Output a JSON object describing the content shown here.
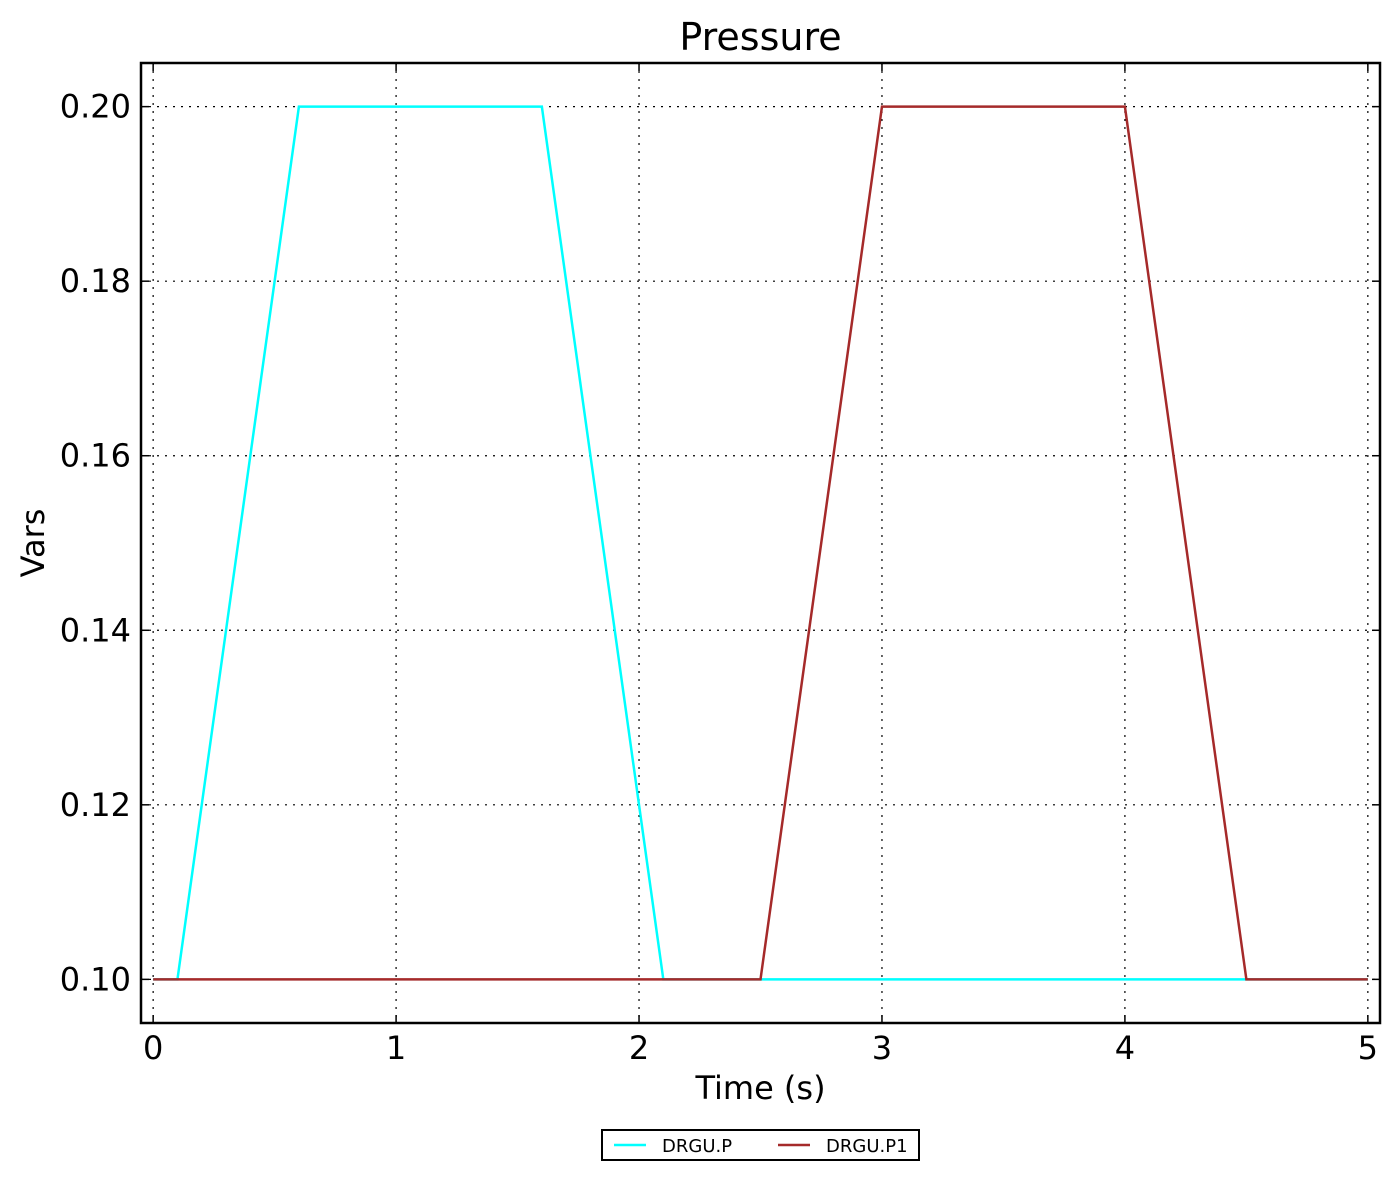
{
  "chart_data": {
    "type": "line",
    "title": "Pressure",
    "xlabel": "Time (s)",
    "ylabel": "Vars",
    "xlim": [
      -0.05,
      5.05
    ],
    "ylim": [
      0.095,
      0.205
    ],
    "xticks": [
      0,
      1,
      2,
      3,
      4,
      5
    ],
    "xtick_labels": [
      "0",
      "1",
      "2",
      "3",
      "4",
      "5"
    ],
    "yticks": [
      0.1,
      0.12,
      0.14,
      0.16,
      0.18,
      0.2
    ],
    "ytick_labels": [
      "0.10",
      "0.12",
      "0.14",
      "0.16",
      "0.18",
      "0.20"
    ],
    "grid": true,
    "legend_position": "bottom-center",
    "series": [
      {
        "name": "DRGU.P",
        "color": "#00ffff",
        "x": [
          0,
          0.1,
          0.6,
          1.6,
          2.1,
          5.0
        ],
        "y": [
          0.1,
          0.1,
          0.2,
          0.2,
          0.1,
          0.1
        ]
      },
      {
        "name": "DRGU.P1",
        "color": "#a52a2a",
        "x": [
          0,
          2.5,
          3.0,
          4.0,
          4.5,
          5.0
        ],
        "y": [
          0.1,
          0.1,
          0.2,
          0.2,
          0.1,
          0.1
        ]
      }
    ]
  }
}
